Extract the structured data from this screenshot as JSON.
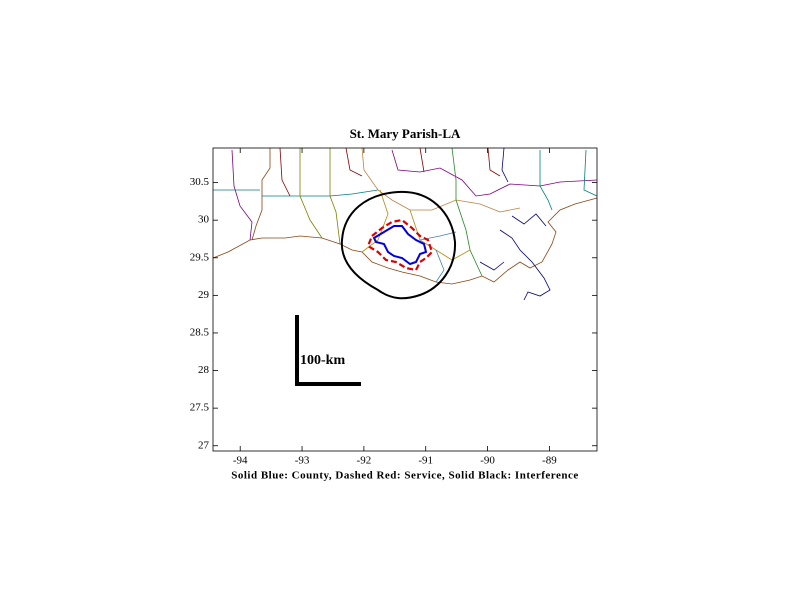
{
  "chart_data": {
    "type": "map",
    "title": "St. Mary Parish-LA",
    "xlabel": "Solid Blue: County, Dashed Red: Service, Solid Black: Interference",
    "annotation": "100-km",
    "xlim": [
      -94.44,
      -88.23
    ],
    "ylim": [
      26.93,
      30.96
    ],
    "xticks": [
      -94,
      -93,
      -92,
      -91,
      -90,
      -89
    ],
    "yticks": [
      27,
      27.5,
      28,
      28.5,
      29,
      29.5,
      30,
      30.5
    ]
  }
}
